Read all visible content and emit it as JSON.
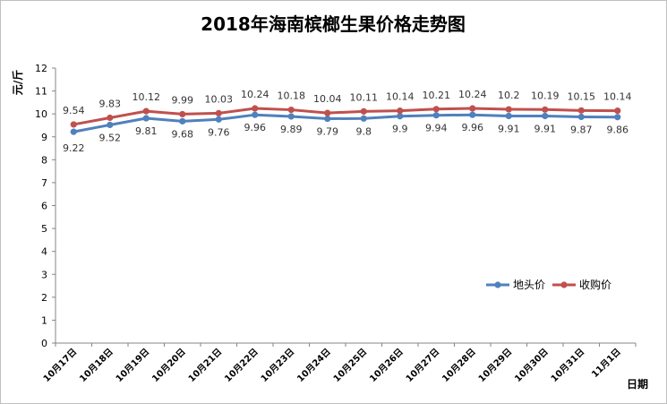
{
  "chart_data": {
    "type": "line",
    "title": "2018年海南槟榔生果价格走势图",
    "xlabel": "日期",
    "ylabel": "元/斤",
    "ylim": [
      0,
      12
    ],
    "yticks": [
      0,
      1,
      2,
      3,
      4,
      5,
      6,
      7,
      8,
      9,
      10,
      11,
      12
    ],
    "grid": false,
    "legend": "right",
    "categories": [
      "10月17日",
      "10月18日",
      "10月19日",
      "10月20日",
      "10月21日",
      "10月22日",
      "10月23日",
      "10月24日",
      "10月25日",
      "10月26日",
      "10月27日",
      "10月28日",
      "10月29日",
      "10月30日",
      "10月31日",
      "11月1日"
    ],
    "series": [
      {
        "name": "地头价",
        "color": "#4f81bd",
        "values": [
          9.22,
          9.52,
          9.81,
          9.68,
          9.76,
          9.96,
          9.89,
          9.79,
          9.8,
          9.9,
          9.94,
          9.96,
          9.91,
          9.91,
          9.87,
          9.86
        ],
        "labels": [
          "9.22",
          "9.52",
          "9.81",
          "9.68",
          "9.76",
          "9.96",
          "9.89",
          "9.79",
          "9.8",
          "9.9",
          "9.94",
          "9.96",
          "9.91",
          "9.91",
          "9.87",
          "9.86"
        ]
      },
      {
        "name": "收购价",
        "color": "#c0504d",
        "values": [
          9.54,
          9.83,
          10.12,
          9.99,
          10.03,
          10.24,
          10.18,
          10.04,
          10.11,
          10.14,
          10.21,
          10.24,
          10.2,
          10.19,
          10.15,
          10.14
        ],
        "labels": [
          "9.54",
          "9.83",
          "10.12",
          "9.99",
          "10.03",
          "10.24",
          "10.18",
          "10.04",
          "10.11",
          "10.14",
          "10.21",
          "10.24",
          "10.2",
          "10.19",
          "10.15",
          "10.14"
        ]
      }
    ]
  }
}
